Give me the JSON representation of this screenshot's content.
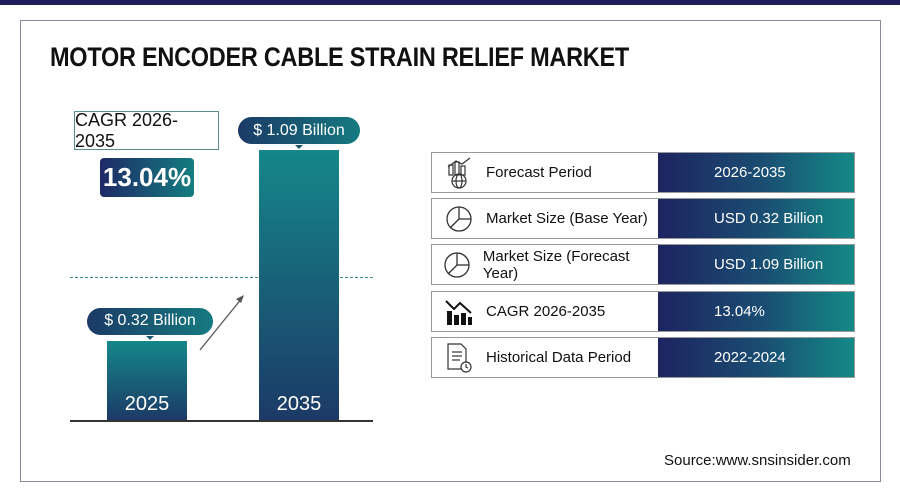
{
  "title": "MOTOR ENCODER CABLE STRAIN RELIEF MARKET",
  "cagr": {
    "label": "CAGR 2026-2035",
    "value": "13.04%"
  },
  "chart_data": {
    "type": "bar",
    "categories": [
      "2025",
      "2035"
    ],
    "values": [
      0.32,
      1.09
    ],
    "data_labels": [
      "$ 0.32 Billion",
      "$ 1.09 Billion"
    ],
    "unit": "USD Billion"
  },
  "table": [
    {
      "icon": "chart-globe-icon",
      "label": "Forecast Period",
      "value": "2026-2035"
    },
    {
      "icon": "pie-chart-icon",
      "label": "Market Size (Base Year)",
      "value": "USD 0.32 Billion"
    },
    {
      "icon": "pie-chart-icon",
      "label": "Market Size (Forecast Year)",
      "value": "USD 1.09 Billion"
    },
    {
      "icon": "bar-chart-down-icon",
      "label": "CAGR 2026-2035",
      "value": "13.04%"
    },
    {
      "icon": "document-clock-icon",
      "label": "Historical Data Period",
      "value": "2022-2024"
    }
  ],
  "source": "Source:www.snsinsider.com",
  "colors": {
    "navy": "#1e1f5c",
    "teal": "#138a86"
  }
}
